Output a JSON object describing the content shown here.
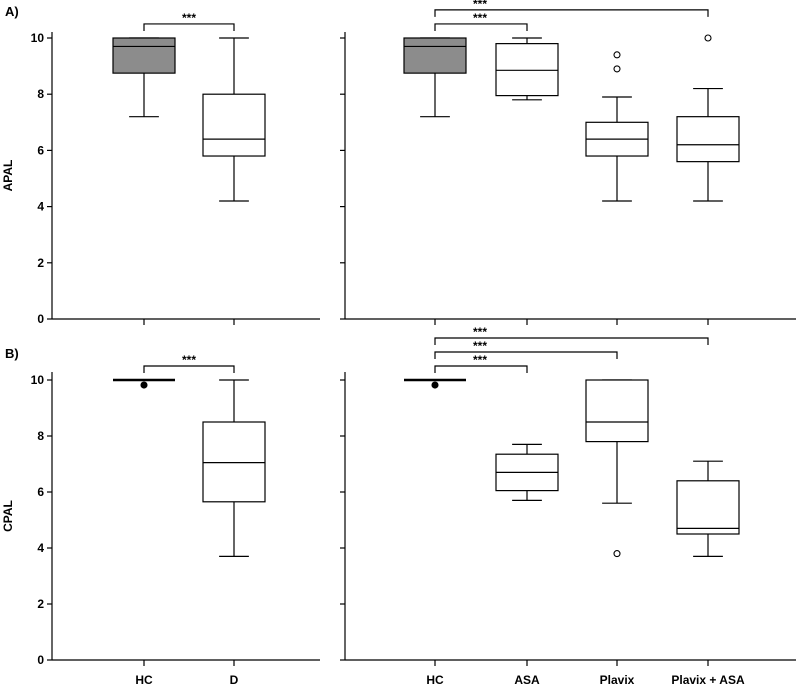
{
  "chart_data": [
    {
      "type": "box",
      "panel_label": "A)",
      "ylabel": "APAL",
      "ylim": [
        0,
        10
      ],
      "yticks": [
        0,
        2,
        4,
        6,
        8,
        10
      ],
      "subplots": [
        {
          "categories": [
            "HC",
            "D"
          ],
          "boxes": [
            {
              "category": "HC",
              "whisker_low": 7.2,
              "q1": 8.75,
              "median": 9.7,
              "q3": 10,
              "whisker_high": 10,
              "fill": "#8c8c8c",
              "outliers": [],
              "outlier_style": "open"
            },
            {
              "category": "D",
              "whisker_low": 4.2,
              "q1": 5.8,
              "median": 6.4,
              "q3": 8.0,
              "whisker_high": 10,
              "fill": "#ffffff",
              "outliers": [],
              "outlier_style": "open"
            }
          ],
          "significance": [
            {
              "from": "HC",
              "to": "D",
              "label": "***",
              "level": 10.5
            }
          ]
        },
        {
          "categories": [
            "HC",
            "ASA",
            "Plavix",
            "Plavix + ASA"
          ],
          "boxes": [
            {
              "category": "HC",
              "whisker_low": 7.2,
              "q1": 8.75,
              "median": 9.7,
              "q3": 10,
              "whisker_high": 10,
              "fill": "#8c8c8c",
              "outliers": [],
              "outlier_style": "open"
            },
            {
              "category": "ASA",
              "whisker_low": 7.8,
              "q1": 7.95,
              "median": 8.85,
              "q3": 9.8,
              "whisker_high": 10,
              "fill": "#ffffff",
              "outliers": [],
              "outlier_style": "open"
            },
            {
              "category": "Plavix",
              "whisker_low": 4.2,
              "q1": 5.8,
              "median": 6.4,
              "q3": 7.0,
              "whisker_high": 7.9,
              "fill": "#ffffff",
              "outliers": [
                9.4,
                8.9
              ],
              "outlier_style": "open"
            },
            {
              "category": "Plavix + ASA",
              "whisker_low": 4.2,
              "q1": 5.6,
              "median": 6.2,
              "q3": 7.2,
              "whisker_high": 8.2,
              "fill": "#ffffff",
              "outliers": [
                10.0
              ],
              "outlier_style": "open"
            }
          ],
          "significance": [
            {
              "from": "HC",
              "to": "ASA",
              "label": "***",
              "level": 10.5
            },
            {
              "from": "HC",
              "to": "Plavix + ASA",
              "label": "***",
              "level": 11.0
            }
          ]
        }
      ]
    },
    {
      "type": "box",
      "panel_label": "B)",
      "ylabel": "CPAL",
      "ylim": [
        0,
        10
      ],
      "yticks": [
        0,
        2,
        4,
        6,
        8,
        10
      ],
      "subplots": [
        {
          "categories": [
            "HC",
            "D"
          ],
          "boxes": [
            {
              "category": "HC",
              "whisker_low": 10,
              "q1": 10,
              "median": 10,
              "q3": 10,
              "whisker_high": 10,
              "fill": "#ffffff",
              "outliers": [
                9.82
              ],
              "outlier_style": "filled"
            },
            {
              "category": "D",
              "whisker_low": 3.7,
              "q1": 5.65,
              "median": 7.05,
              "q3": 8.5,
              "whisker_high": 10,
              "fill": "#ffffff",
              "outliers": [],
              "outlier_style": "open"
            }
          ],
          "significance": [
            {
              "from": "HC",
              "to": "D",
              "label": "***",
              "level": 10.5
            }
          ]
        },
        {
          "categories": [
            "HC",
            "ASA",
            "Plavix",
            "Plavix + ASA"
          ],
          "boxes": [
            {
              "category": "HC",
              "whisker_low": 10,
              "q1": 10,
              "median": 10,
              "q3": 10,
              "whisker_high": 10,
              "fill": "#ffffff",
              "outliers": [
                9.82
              ],
              "outlier_style": "filled"
            },
            {
              "category": "ASA",
              "whisker_low": 5.7,
              "q1": 6.05,
              "median": 6.7,
              "q3": 7.35,
              "whisker_high": 7.7,
              "fill": "#ffffff",
              "outliers": [],
              "outlier_style": "open"
            },
            {
              "category": "Plavix",
              "whisker_low": 5.6,
              "q1": 7.8,
              "median": 8.5,
              "q3": 10,
              "whisker_high": 10,
              "fill": "#ffffff",
              "outliers": [
                3.8
              ],
              "outlier_style": "open"
            },
            {
              "category": "Plavix + ASA",
              "whisker_low": 3.7,
              "q1": 4.5,
              "median": 4.7,
              "q3": 6.4,
              "whisker_high": 7.1,
              "fill": "#ffffff",
              "outliers": [],
              "outlier_style": "open"
            }
          ],
          "significance": [
            {
              "from": "HC",
              "to": "ASA",
              "label": "***",
              "level": 10.5
            },
            {
              "from": "HC",
              "to": "Plavix",
              "label": "***",
              "level": 11.0
            },
            {
              "from": "HC",
              "to": "Plavix + ASA",
              "label": "***",
              "level": 11.5
            }
          ]
        }
      ]
    }
  ]
}
